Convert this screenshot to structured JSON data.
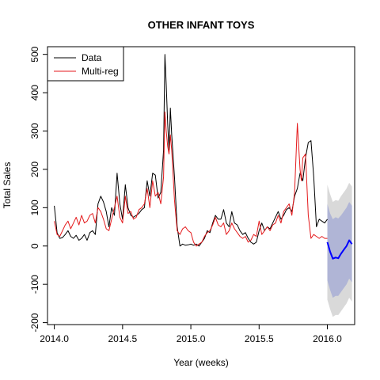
{
  "chart_data": {
    "type": "line",
    "title": "OTHER INFANT TOYS",
    "xlabel": "Year (weeks)",
    "ylabel": "Total Sales",
    "xlim": [
      2013.95,
      2016.2
    ],
    "ylim": [
      -205,
      520
    ],
    "xticks": [
      2014.0,
      2014.5,
      2015.0,
      2015.5,
      2016.0
    ],
    "xtick_labels": [
      "2014.0",
      "2014.5",
      "2015.0",
      "2015.5",
      "2016.0"
    ],
    "yticks": [
      -200,
      -100,
      0,
      100,
      200,
      300,
      400,
      500
    ],
    "ytick_labels": [
      "-200",
      "-100",
      "0",
      "100",
      "200",
      "300",
      "400",
      "500"
    ],
    "grid": false,
    "legend": {
      "position": "top-left",
      "entries": [
        "Data",
        "Multi-reg"
      ]
    },
    "colors": {
      "data": "#000000",
      "multireg": "#e41a1c",
      "forecast": "#0000ff",
      "band95": "#d9d9d9",
      "band80": "#b0b5d6"
    },
    "series": [
      {
        "name": "Data",
        "x": [
          2014.0,
          2014.02,
          2014.04,
          2014.06,
          2014.08,
          2014.1,
          2014.12,
          2014.14,
          2014.16,
          2014.18,
          2014.2,
          2014.22,
          2014.24,
          2014.26,
          2014.28,
          2014.3,
          2014.32,
          2014.34,
          2014.36,
          2014.38,
          2014.4,
          2014.42,
          2014.44,
          2014.46,
          2014.48,
          2014.5,
          2014.52,
          2014.54,
          2014.56,
          2014.58,
          2014.6,
          2014.62,
          2014.64,
          2014.66,
          2014.68,
          2014.7,
          2014.72,
          2014.74,
          2014.76,
          2014.78,
          2014.8,
          2014.81,
          2014.82,
          2014.83,
          2014.84,
          2014.85,
          2014.86,
          2014.88,
          2014.9,
          2014.92,
          2014.94,
          2014.96,
          2014.98,
          2015.0,
          2015.02,
          2015.04,
          2015.06,
          2015.08,
          2015.1,
          2015.12,
          2015.14,
          2015.16,
          2015.18,
          2015.2,
          2015.22,
          2015.24,
          2015.26,
          2015.28,
          2015.3,
          2015.32,
          2015.34,
          2015.36,
          2015.38,
          2015.4,
          2015.42,
          2015.44,
          2015.46,
          2015.48,
          2015.5,
          2015.52,
          2015.54,
          2015.56,
          2015.58,
          2015.6,
          2015.62,
          2015.64,
          2015.66,
          2015.68,
          2015.7,
          2015.72,
          2015.74,
          2015.76,
          2015.78,
          2015.8,
          2015.82,
          2015.84,
          2015.86,
          2015.88,
          2015.9,
          2015.92,
          2015.94,
          2015.96,
          2015.98,
          2016.0
        ],
        "values": [
          105,
          35,
          20,
          22,
          30,
          40,
          25,
          20,
          28,
          15,
          20,
          30,
          15,
          35,
          40,
          30,
          110,
          130,
          115,
          90,
          50,
          100,
          80,
          190,
          110,
          70,
          160,
          100,
          80,
          75,
          80,
          85,
          95,
          100,
          170,
          130,
          190,
          185,
          125,
          140,
          250,
          500,
          420,
          320,
          250,
          360,
          290,
          180,
          50,
          0,
          5,
          2,
          3,
          5,
          2,
          5,
          0,
          10,
          20,
          40,
          35,
          60,
          80,
          70,
          70,
          95,
          60,
          50,
          90,
          60,
          55,
          40,
          30,
          35,
          20,
          10,
          5,
          10,
          40,
          60,
          40,
          50,
          45,
          60,
          75,
          90,
          70,
          80,
          95,
          100,
          90,
          130,
          150,
          190,
          170,
          230,
          270,
          275,
          180,
          50,
          70,
          65,
          60,
          70
        ]
      },
      {
        "name": "Multi-reg",
        "x": [
          2014.0,
          2014.02,
          2014.04,
          2014.06,
          2014.08,
          2014.1,
          2014.12,
          2014.14,
          2014.16,
          2014.18,
          2014.2,
          2014.22,
          2014.24,
          2014.26,
          2014.28,
          2014.3,
          2014.32,
          2014.34,
          2014.36,
          2014.38,
          2014.4,
          2014.42,
          2014.44,
          2014.46,
          2014.48,
          2014.5,
          2014.52,
          2014.54,
          2014.56,
          2014.58,
          2014.6,
          2014.62,
          2014.64,
          2014.66,
          2014.68,
          2014.7,
          2014.72,
          2014.74,
          2014.76,
          2014.78,
          2014.8,
          2014.81,
          2014.82,
          2014.83,
          2014.84,
          2014.85,
          2014.86,
          2014.88,
          2014.9,
          2014.92,
          2014.94,
          2014.96,
          2014.98,
          2015.0,
          2015.02,
          2015.04,
          2015.06,
          2015.08,
          2015.1,
          2015.12,
          2015.14,
          2015.16,
          2015.18,
          2015.2,
          2015.22,
          2015.24,
          2015.26,
          2015.28,
          2015.3,
          2015.32,
          2015.34,
          2015.36,
          2015.38,
          2015.4,
          2015.42,
          2015.44,
          2015.46,
          2015.48,
          2015.5,
          2015.52,
          2015.54,
          2015.56,
          2015.58,
          2015.6,
          2015.62,
          2015.64,
          2015.66,
          2015.68,
          2015.7,
          2015.72,
          2015.74,
          2015.76,
          2015.78,
          2015.8,
          2015.81,
          2015.82,
          2015.84,
          2015.86,
          2015.88,
          2015.9,
          2015.92,
          2015.94,
          2015.96,
          2015.98,
          2016.0
        ],
        "values": [
          65,
          30,
          25,
          40,
          55,
          65,
          45,
          60,
          75,
          55,
          80,
          60,
          65,
          80,
          85,
          60,
          100,
          90,
          70,
          45,
          40,
          70,
          100,
          130,
          75,
          60,
          130,
          85,
          90,
          70,
          75,
          95,
          100,
          110,
          150,
          100,
          170,
          130,
          140,
          110,
          180,
          350,
          300,
          260,
          240,
          290,
          250,
          120,
          40,
          30,
          45,
          50,
          40,
          35,
          10,
          0,
          5,
          10,
          25,
          35,
          40,
          55,
          75,
          55,
          50,
          60,
          30,
          40,
          60,
          45,
          35,
          25,
          20,
          25,
          10,
          15,
          30,
          25,
          65,
          30,
          40,
          50,
          40,
          55,
          60,
          80,
          60,
          90,
          100,
          110,
          80,
          140,
          320,
          200,
          170,
          230,
          240,
          80,
          20,
          30,
          25,
          20,
          25,
          20,
          20
        ]
      },
      {
        "name": "",
        "x": [
          2016.0,
          2016.02,
          2016.04,
          2016.06,
          2016.08,
          2016.1,
          2016.12,
          2016.14,
          2016.16,
          2016.18
        ],
        "values": [
          10,
          -15,
          -33,
          -30,
          -32,
          -20,
          -10,
          0,
          15,
          5
        ]
      }
    ],
    "bands": [
      {
        "level": "95",
        "x": [
          2016.0,
          2016.02,
          2016.04,
          2016.06,
          2016.08,
          2016.1,
          2016.12,
          2016.14,
          2016.16,
          2016.18
        ],
        "lower": [
          -140,
          -165,
          -185,
          -180,
          -180,
          -170,
          -160,
          -150,
          -135,
          -145
        ],
        "upper": [
          160,
          135,
          115,
          120,
          118,
          130,
          140,
          150,
          165,
          155
        ]
      },
      {
        "level": "80",
        "x": [
          2016.0,
          2016.02,
          2016.04,
          2016.06,
          2016.08,
          2016.1,
          2016.12,
          2016.14,
          2016.16,
          2016.18
        ],
        "lower": [
          -90,
          -115,
          -135,
          -130,
          -130,
          -120,
          -110,
          -100,
          -85,
          -95
        ],
        "upper": [
          110,
          85,
          70,
          75,
          72,
          80,
          90,
          100,
          115,
          105
        ]
      }
    ]
  }
}
